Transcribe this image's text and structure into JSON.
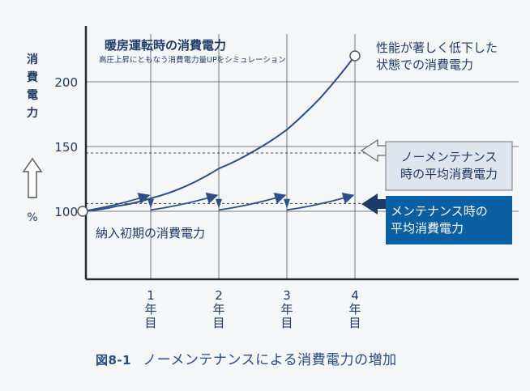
{
  "chart_data": {
    "type": "line",
    "title": "暖房運転時の消費電力",
    "subtitle": "高圧上昇にともなう消費電力量UPをシミュレーション",
    "ylabel": "消費電力",
    "yunit": "%",
    "ylim": [
      60,
      230
    ],
    "y_ticks": [
      100,
      150,
      200
    ],
    "xlim": [
      -0.2,
      4.5
    ],
    "x_ticks": [
      {
        "value": 1,
        "label": "1年目"
      },
      {
        "value": 2,
        "label": "2年目"
      },
      {
        "value": 3,
        "label": "3年目"
      },
      {
        "value": 4,
        "label": "4年目"
      }
    ],
    "grid": true,
    "series": [
      {
        "name": "ノーメンテナンス",
        "x": [
          0,
          0.5,
          1,
          1.5,
          2,
          2.5,
          3,
          3.5,
          4
        ],
        "values": [
          100,
          104,
          110,
          119,
          133,
          146,
          163,
          188,
          220
        ]
      },
      {
        "name": "メンテナンス",
        "segments": [
          {
            "x": [
              0,
              1
            ],
            "values": [
              100,
              112
            ]
          },
          {
            "x": [
              1,
              2
            ],
            "values": [
              101,
              112
            ]
          },
          {
            "x": [
              2,
              3
            ],
            "values": [
              101,
              112
            ]
          },
          {
            "x": [
              3,
              4
            ],
            "values": [
              101,
              112
            ]
          }
        ]
      }
    ],
    "avg_lines": [
      {
        "label": "ノーメンテナンス時の平均消費電力",
        "value": 145
      },
      {
        "label": "メンテナンス時の平均消費電力",
        "value": 106
      }
    ],
    "annotations": {
      "end_point": "性能が著しく低下した状態での消費電力",
      "start_point": "納入初期の消費電力"
    }
  },
  "caption": {
    "fig_no": "図8-1",
    "text": "ノーメンテナンスによる消費電力の増加"
  },
  "colors": {
    "curve": "#2d4f86",
    "box_light": "#dfe5ec",
    "box_dark": "#0b5fa3",
    "grid": "#555555"
  }
}
